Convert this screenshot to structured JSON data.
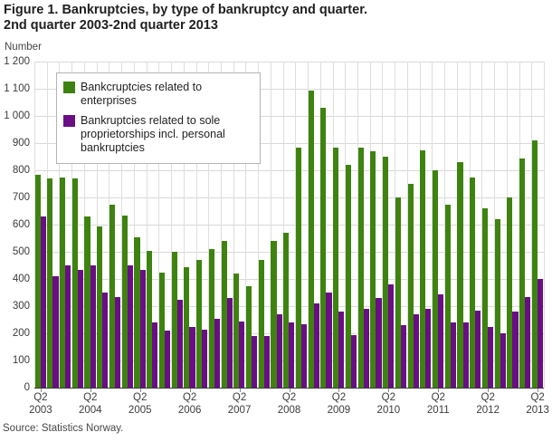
{
  "figure": {
    "title_line1": "Figure 1. Bankruptcies, by type of bankruptcy and quarter.",
    "title_line2": "2nd quarter 2003-2nd quarter 2013",
    "unit_label": "Number",
    "source": "Source: Statistics Norway."
  },
  "chart_data": {
    "type": "bar",
    "title": "Figure 1. Bankruptcies, by type of bankruptcy and quarter. 2nd quarter 2003-2nd quarter 2013",
    "xlabel": "",
    "ylabel": "Number",
    "ylim": [
      0,
      1200
    ],
    "ytick_step": 100,
    "ytick_labels": [
      "0",
      "100",
      "200",
      "300",
      "400",
      "500",
      "600",
      "700",
      "800",
      "900",
      "1 000",
      "1 100",
      "1 200"
    ],
    "grid": true,
    "legend_position": "top-left",
    "categories": [
      "Q2 2003",
      "Q3 2003",
      "Q4 2003",
      "Q1 2004",
      "Q2 2004",
      "Q3 2004",
      "Q4 2004",
      "Q1 2005",
      "Q2 2005",
      "Q3 2005",
      "Q4 2005",
      "Q1 2006",
      "Q2 2006",
      "Q3 2006",
      "Q4 2006",
      "Q1 2007",
      "Q2 2007",
      "Q3 2007",
      "Q4 2007",
      "Q1 2008",
      "Q2 2008",
      "Q3 2008",
      "Q4 2008",
      "Q1 2009",
      "Q2 2009",
      "Q3 2009",
      "Q4 2009",
      "Q1 2010",
      "Q2 2010",
      "Q3 2010",
      "Q4 2010",
      "Q1 2011",
      "Q2 2011",
      "Q3 2011",
      "Q4 2011",
      "Q1 2012",
      "Q2 2012",
      "Q3 2012",
      "Q4 2012",
      "Q1 2013",
      "Q2 2013"
    ],
    "x_tick_labels": [
      {
        "index": 0,
        "quarter": "Q2",
        "year": "2003"
      },
      {
        "index": 4,
        "quarter": "Q2",
        "year": "2004"
      },
      {
        "index": 8,
        "quarter": "Q2",
        "year": "2005"
      },
      {
        "index": 12,
        "quarter": "Q2",
        "year": "2006"
      },
      {
        "index": 16,
        "quarter": "Q2",
        "year": "2007"
      },
      {
        "index": 20,
        "quarter": "Q2",
        "year": "2008"
      },
      {
        "index": 24,
        "quarter": "Q2",
        "year": "2009"
      },
      {
        "index": 28,
        "quarter": "Q2",
        "year": "2010"
      },
      {
        "index": 32,
        "quarter": "Q2",
        "year": "2011"
      },
      {
        "index": 36,
        "quarter": "Q2",
        "year": "2012"
      },
      {
        "index": 40,
        "quarter": "Q2",
        "year": "2013"
      }
    ],
    "series": [
      {
        "name": "Bankcruptcies related to enterprises",
        "color": "#3e830f",
        "values": [
          785,
          770,
          775,
          770,
          630,
          595,
          675,
          635,
          555,
          505,
          425,
          500,
          445,
          470,
          510,
          540,
          420,
          375,
          470,
          540,
          570,
          885,
          1095,
          1030,
          885,
          820,
          885,
          870,
          850,
          700,
          750,
          875,
          800,
          675,
          830,
          775,
          660,
          620,
          700,
          845,
          910
        ]
      },
      {
        "name": "Bankruptcies related to sole proprietorships incl. personal bankruptcies",
        "color": "#690e84",
        "values": [
          630,
          410,
          450,
          435,
          450,
          350,
          335,
          450,
          435,
          240,
          210,
          325,
          225,
          215,
          255,
          330,
          245,
          190,
          190,
          270,
          240,
          235,
          310,
          350,
          280,
          195,
          290,
          330,
          380,
          230,
          270,
          290,
          345,
          240,
          240,
          285,
          225,
          200,
          280,
          335,
          400
        ]
      }
    ]
  }
}
